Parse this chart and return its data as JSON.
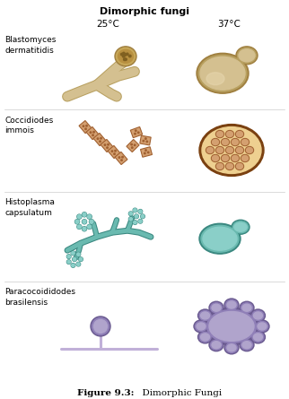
{
  "title": "Dimorphic fungi",
  "temp_25": "25°C",
  "temp_37": "37°C",
  "species": [
    "Blastomyces\ndermatitidis",
    "Coccidiodes\nimmois",
    "Histoplasma\ncapsulatum",
    "Paracocoididodes\nbrasilensis"
  ],
  "fig_bold": "Figure 9.3:",
  "fig_rest": "  Dimorphic Fungi",
  "bg_color": "#ffffff",
  "tan_color": "#D4C090",
  "tan_dark": "#B8A060",
  "tan_outline": "#A08040",
  "rust_color": "#C07840",
  "rust_light": "#D4A070",
  "rust_outline": "#A06030",
  "spherule_outer": "#7A4010",
  "spherule_inner": "#EED090",
  "endospore_color": "#D09050",
  "teal_color": "#6ABAB0",
  "teal_dark": "#3A8880",
  "teal_light": "#8ACFC8",
  "purple_dark": "#6A5A90",
  "purple_mid": "#9080B8",
  "purple_light": "#B0A4CC",
  "purple_stalk": "#C0B0D8",
  "divider_color": "#cccccc",
  "label_color": "#000000"
}
